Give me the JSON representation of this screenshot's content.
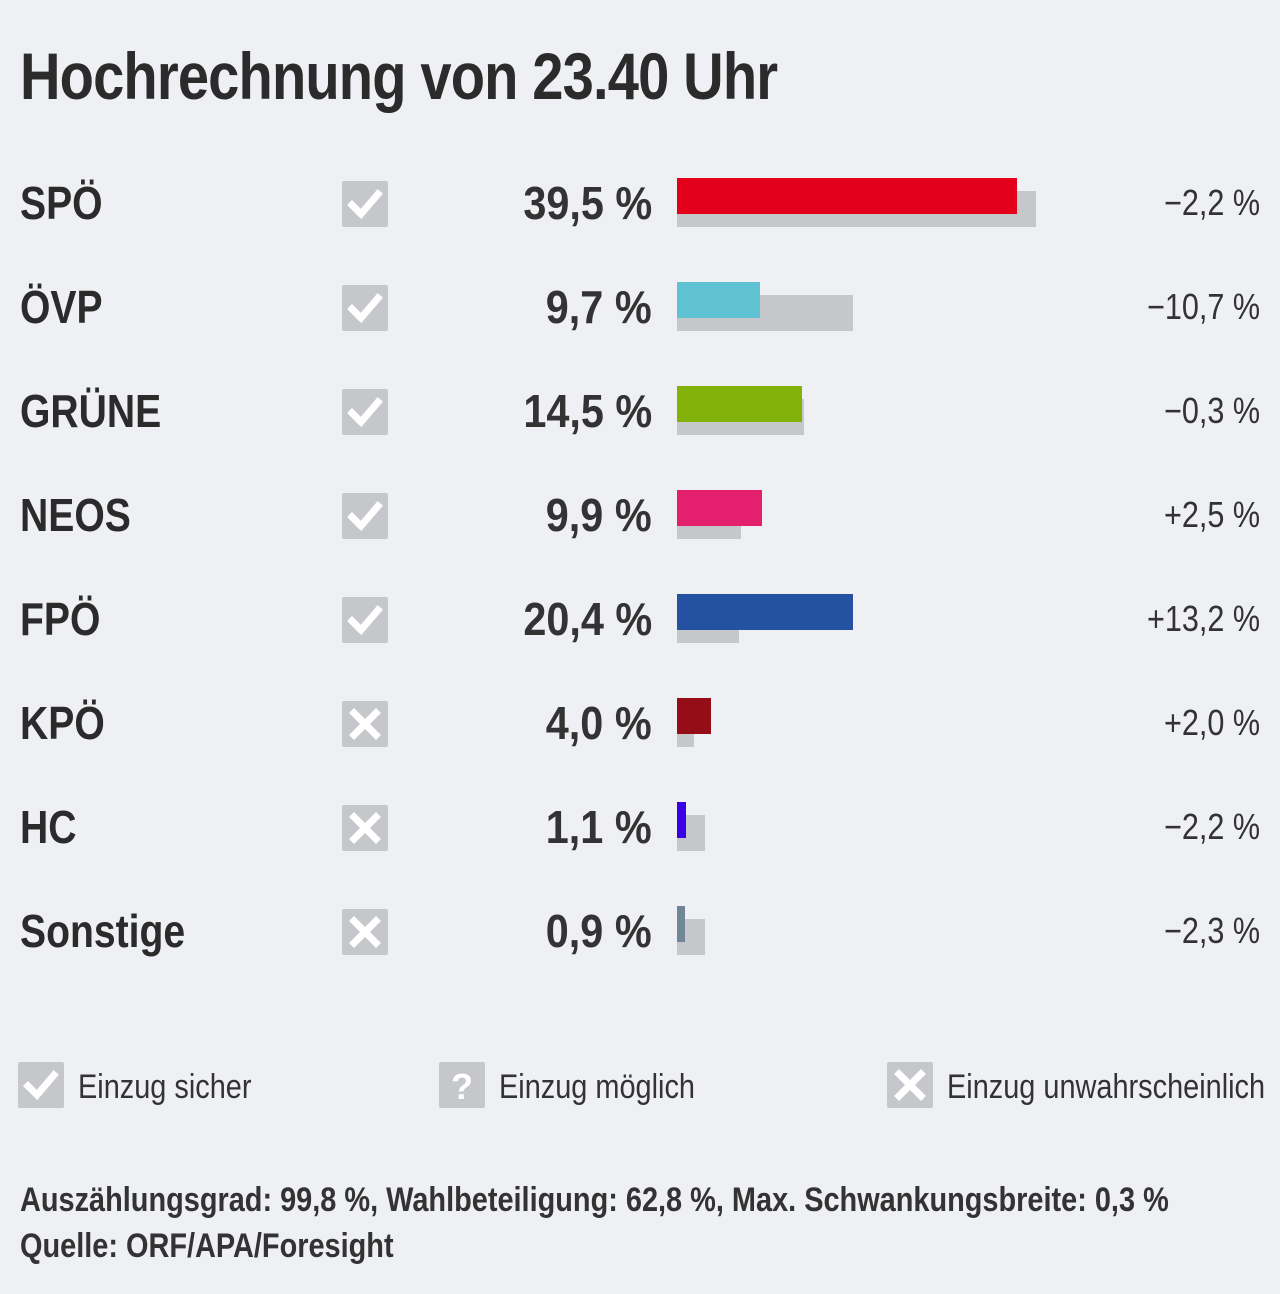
{
  "title": "Hochrechnung von 23.40 Uhr",
  "colors": {
    "status_box": "#c6c7cb",
    "previous_bar": "#c6c7cb",
    "status_mark": "#ffffff"
  },
  "chart_data": {
    "type": "bar",
    "title": "Hochrechnung von 23.40 Uhr",
    "orientation": "horizontal",
    "value_unit": "%",
    "series": [
      {
        "values": [
          39.5,
          9.7,
          14.5,
          9.9,
          20.4,
          4.0,
          1.1,
          0.9
        ]
      },
      {
        "values": [
          41.7,
          20.4,
          14.8,
          7.4,
          7.2,
          2.0,
          3.3,
          3.2
        ]
      }
    ],
    "rows": [
      {
        "party": "SPÖ",
        "status": "check",
        "value": 39.5,
        "value_label": "39,5 %",
        "previous": 41.7,
        "change_label": "−2,2 %",
        "color": "#e2001a"
      },
      {
        "party": "ÖVP",
        "status": "check",
        "value": 9.7,
        "value_label": "9,7 %",
        "previous": 20.4,
        "change_label": "−10,7 %",
        "color": "#5fc3d3"
      },
      {
        "party": "GRÜNE",
        "status": "check",
        "value": 14.5,
        "value_label": "14,5 %",
        "previous": 14.8,
        "change_label": "−0,3 %",
        "color": "#82b20a"
      },
      {
        "party": "NEOS",
        "status": "check",
        "value": 9.9,
        "value_label": "9,9 %",
        "previous": 7.4,
        "change_label": "+2,5 %",
        "color": "#e4206e"
      },
      {
        "party": "FPÖ",
        "status": "check",
        "value": 20.4,
        "value_label": "20,4 %",
        "previous": 7.2,
        "change_label": "+13,2 %",
        "color": "#2452a1"
      },
      {
        "party": "KPÖ",
        "status": "cross",
        "value": 4.0,
        "value_label": "4,0 %",
        "previous": 2.0,
        "change_label": "+2,0 %",
        "color": "#940d17"
      },
      {
        "party": "HC",
        "status": "cross",
        "value": 1.1,
        "value_label": "1,1 %",
        "previous": 3.3,
        "change_label": "−2,2 %",
        "color": "#3a00e8"
      },
      {
        "party": "Sonstige",
        "status": "cross",
        "value": 0.9,
        "value_label": "0,9 %",
        "previous": 3.2,
        "change_label": "−2,3 %",
        "color": "#6f8796"
      }
    ],
    "xlim": [
      0,
      42
    ]
  },
  "legend": [
    {
      "icon": "check",
      "label": "Einzug sicher"
    },
    {
      "icon": "question",
      "label": "Einzug möglich"
    },
    {
      "icon": "cross",
      "label": "Einzug unwahrscheinlich"
    }
  ],
  "footer": {
    "line1": "Auszählungsgrad: 99,8 %, Wahlbeteiligung: 62,8 %, Max. Schwankungsbreite: 0,3 %",
    "line2": "Quelle: ORF/APA/Foresight"
  }
}
